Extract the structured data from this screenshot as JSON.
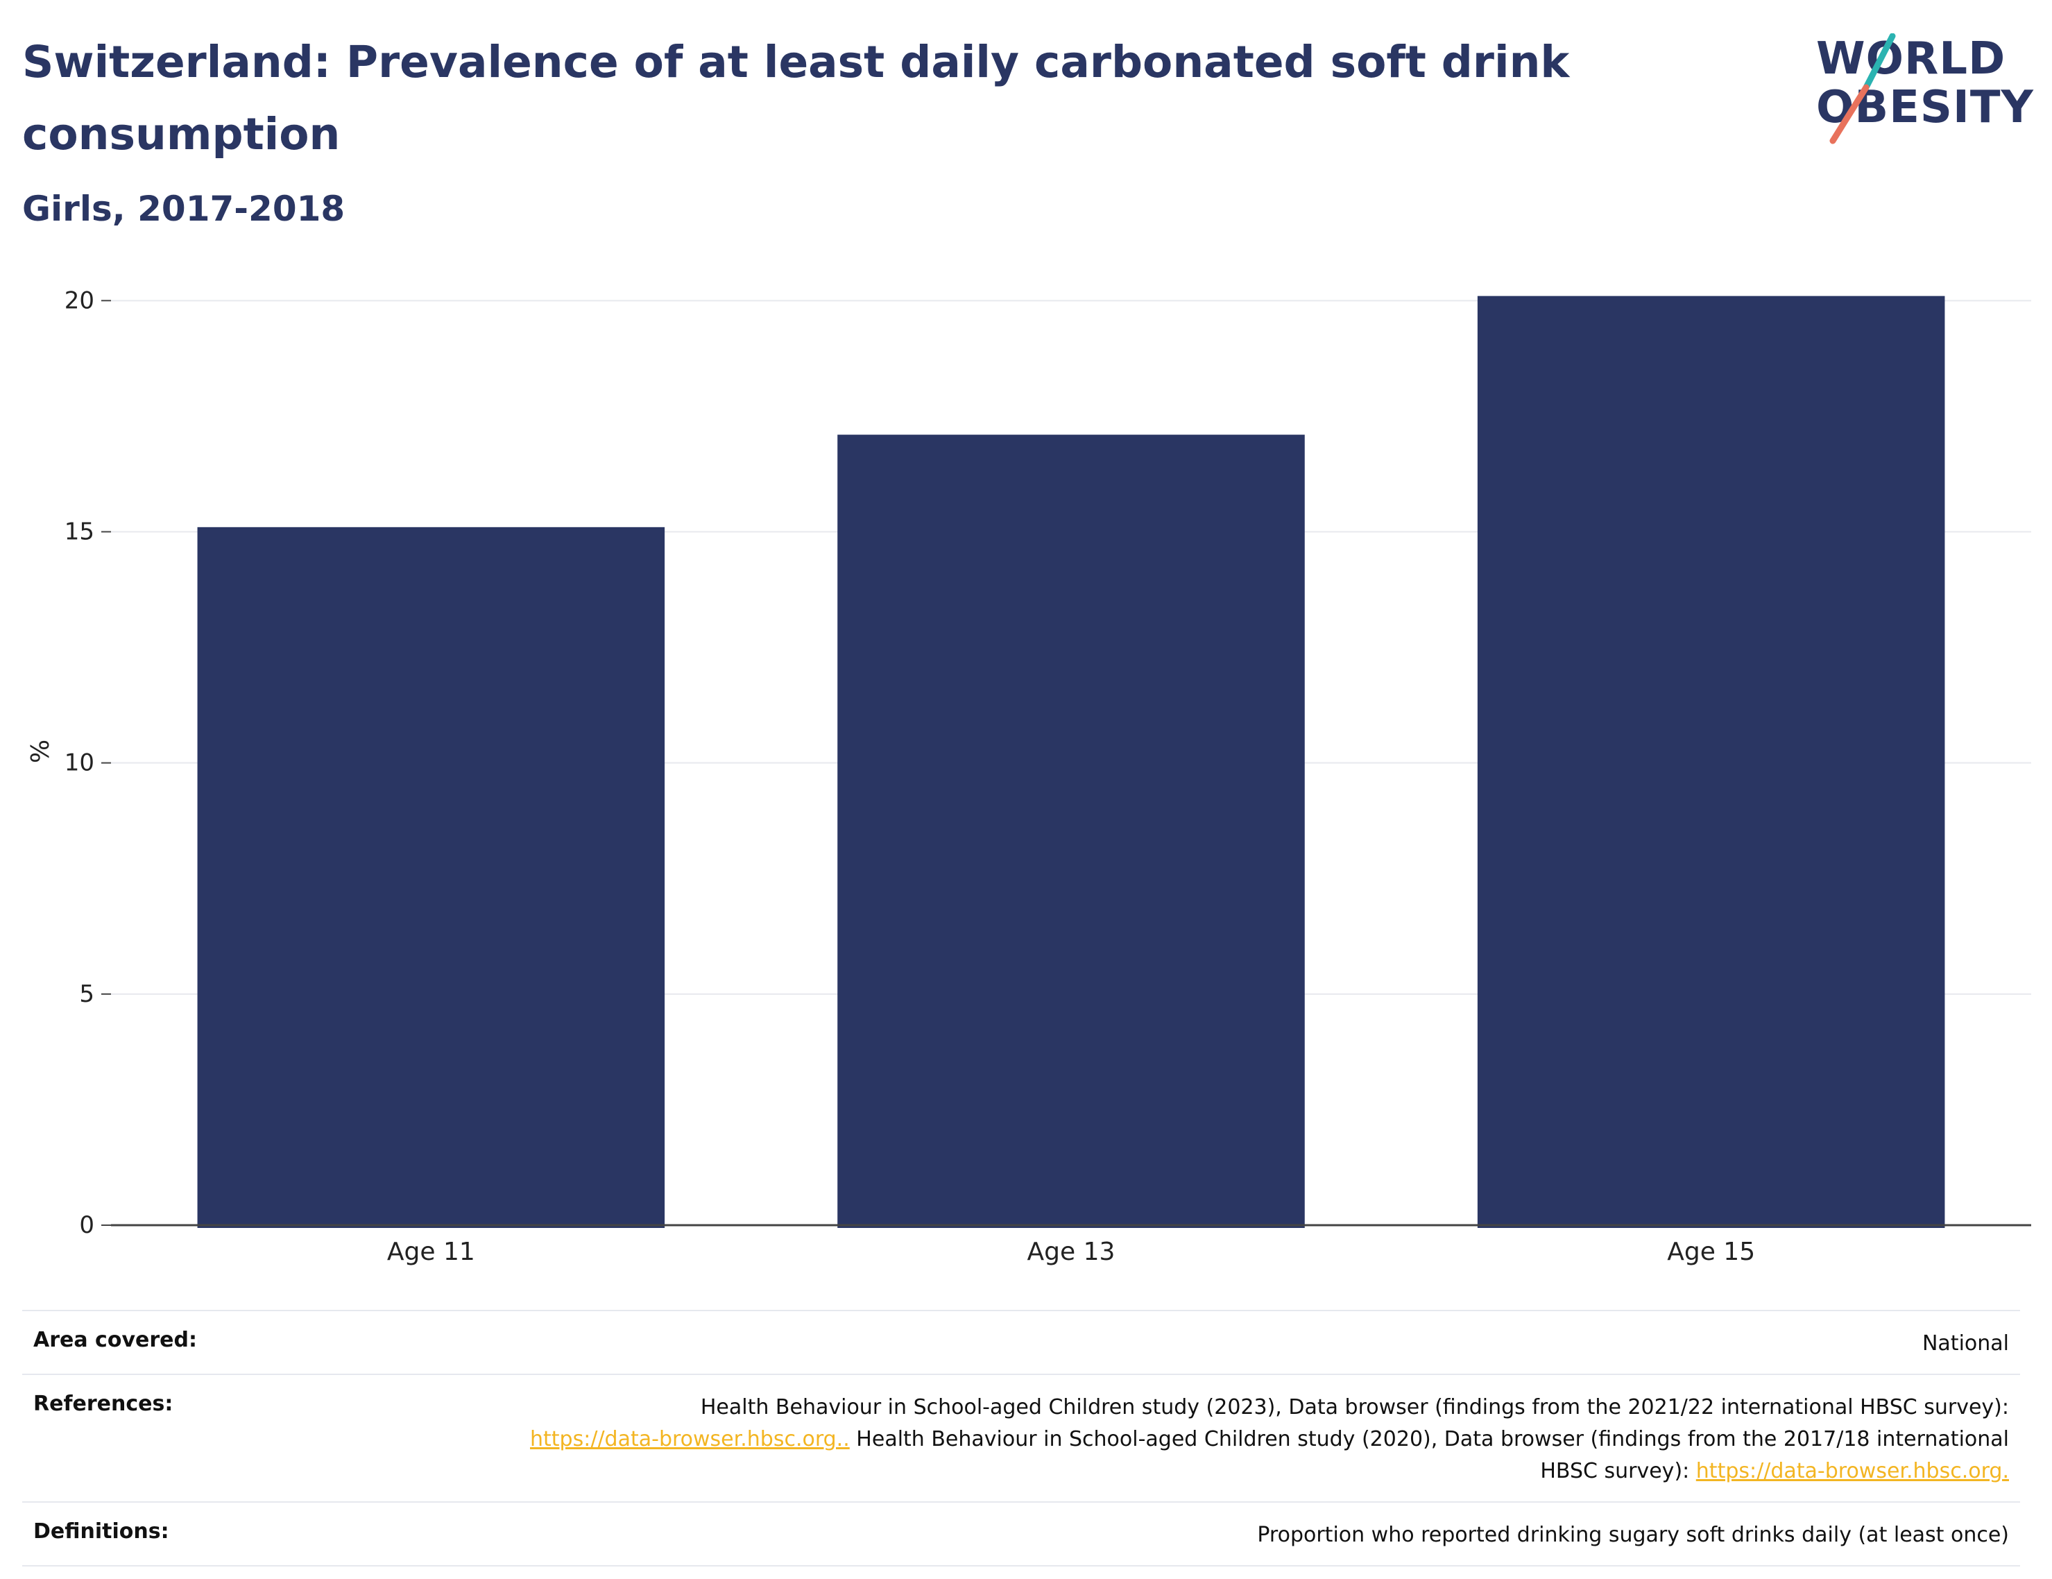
{
  "header": {
    "title": "Switzerland: Prevalence of at least daily carbonated soft drink consumption",
    "subtitle": "Girls, 2017-2018"
  },
  "logo": {
    "line1": "WORLD",
    "line2": "OBESITY",
    "colors": {
      "navy": "#2a3663",
      "teal": "#2bb3b1",
      "coral": "#e8725c"
    }
  },
  "chart_data": {
    "type": "bar",
    "categories": [
      "Age 11",
      "Age 13",
      "Age 15"
    ],
    "values": [
      15.1,
      17.1,
      20.1
    ],
    "ylabel": "%",
    "ylim": [
      0,
      20.5
    ],
    "yticks": [
      0,
      5,
      10,
      15,
      20
    ],
    "grid": true,
    "bar_color": "#2a3663"
  },
  "footer": {
    "area": {
      "label": "Area covered:",
      "value": "National"
    },
    "references": {
      "label": "References:",
      "text1": "Health Behaviour in School-aged Children study (2023), Data browser (findings from the 2021/22 international HBSC survey):",
      "link1": "https://data-browser.hbsc.org..",
      "text2": " Health Behaviour in School-aged Children study (2020), Data browser (findings from the 2017/18 international HBSC survey): ",
      "link2": "https://data-browser.hbsc.org."
    },
    "definitions": {
      "label": "Definitions:",
      "value": "Proportion who reported drinking sugary soft drinks daily (at least once)"
    }
  }
}
